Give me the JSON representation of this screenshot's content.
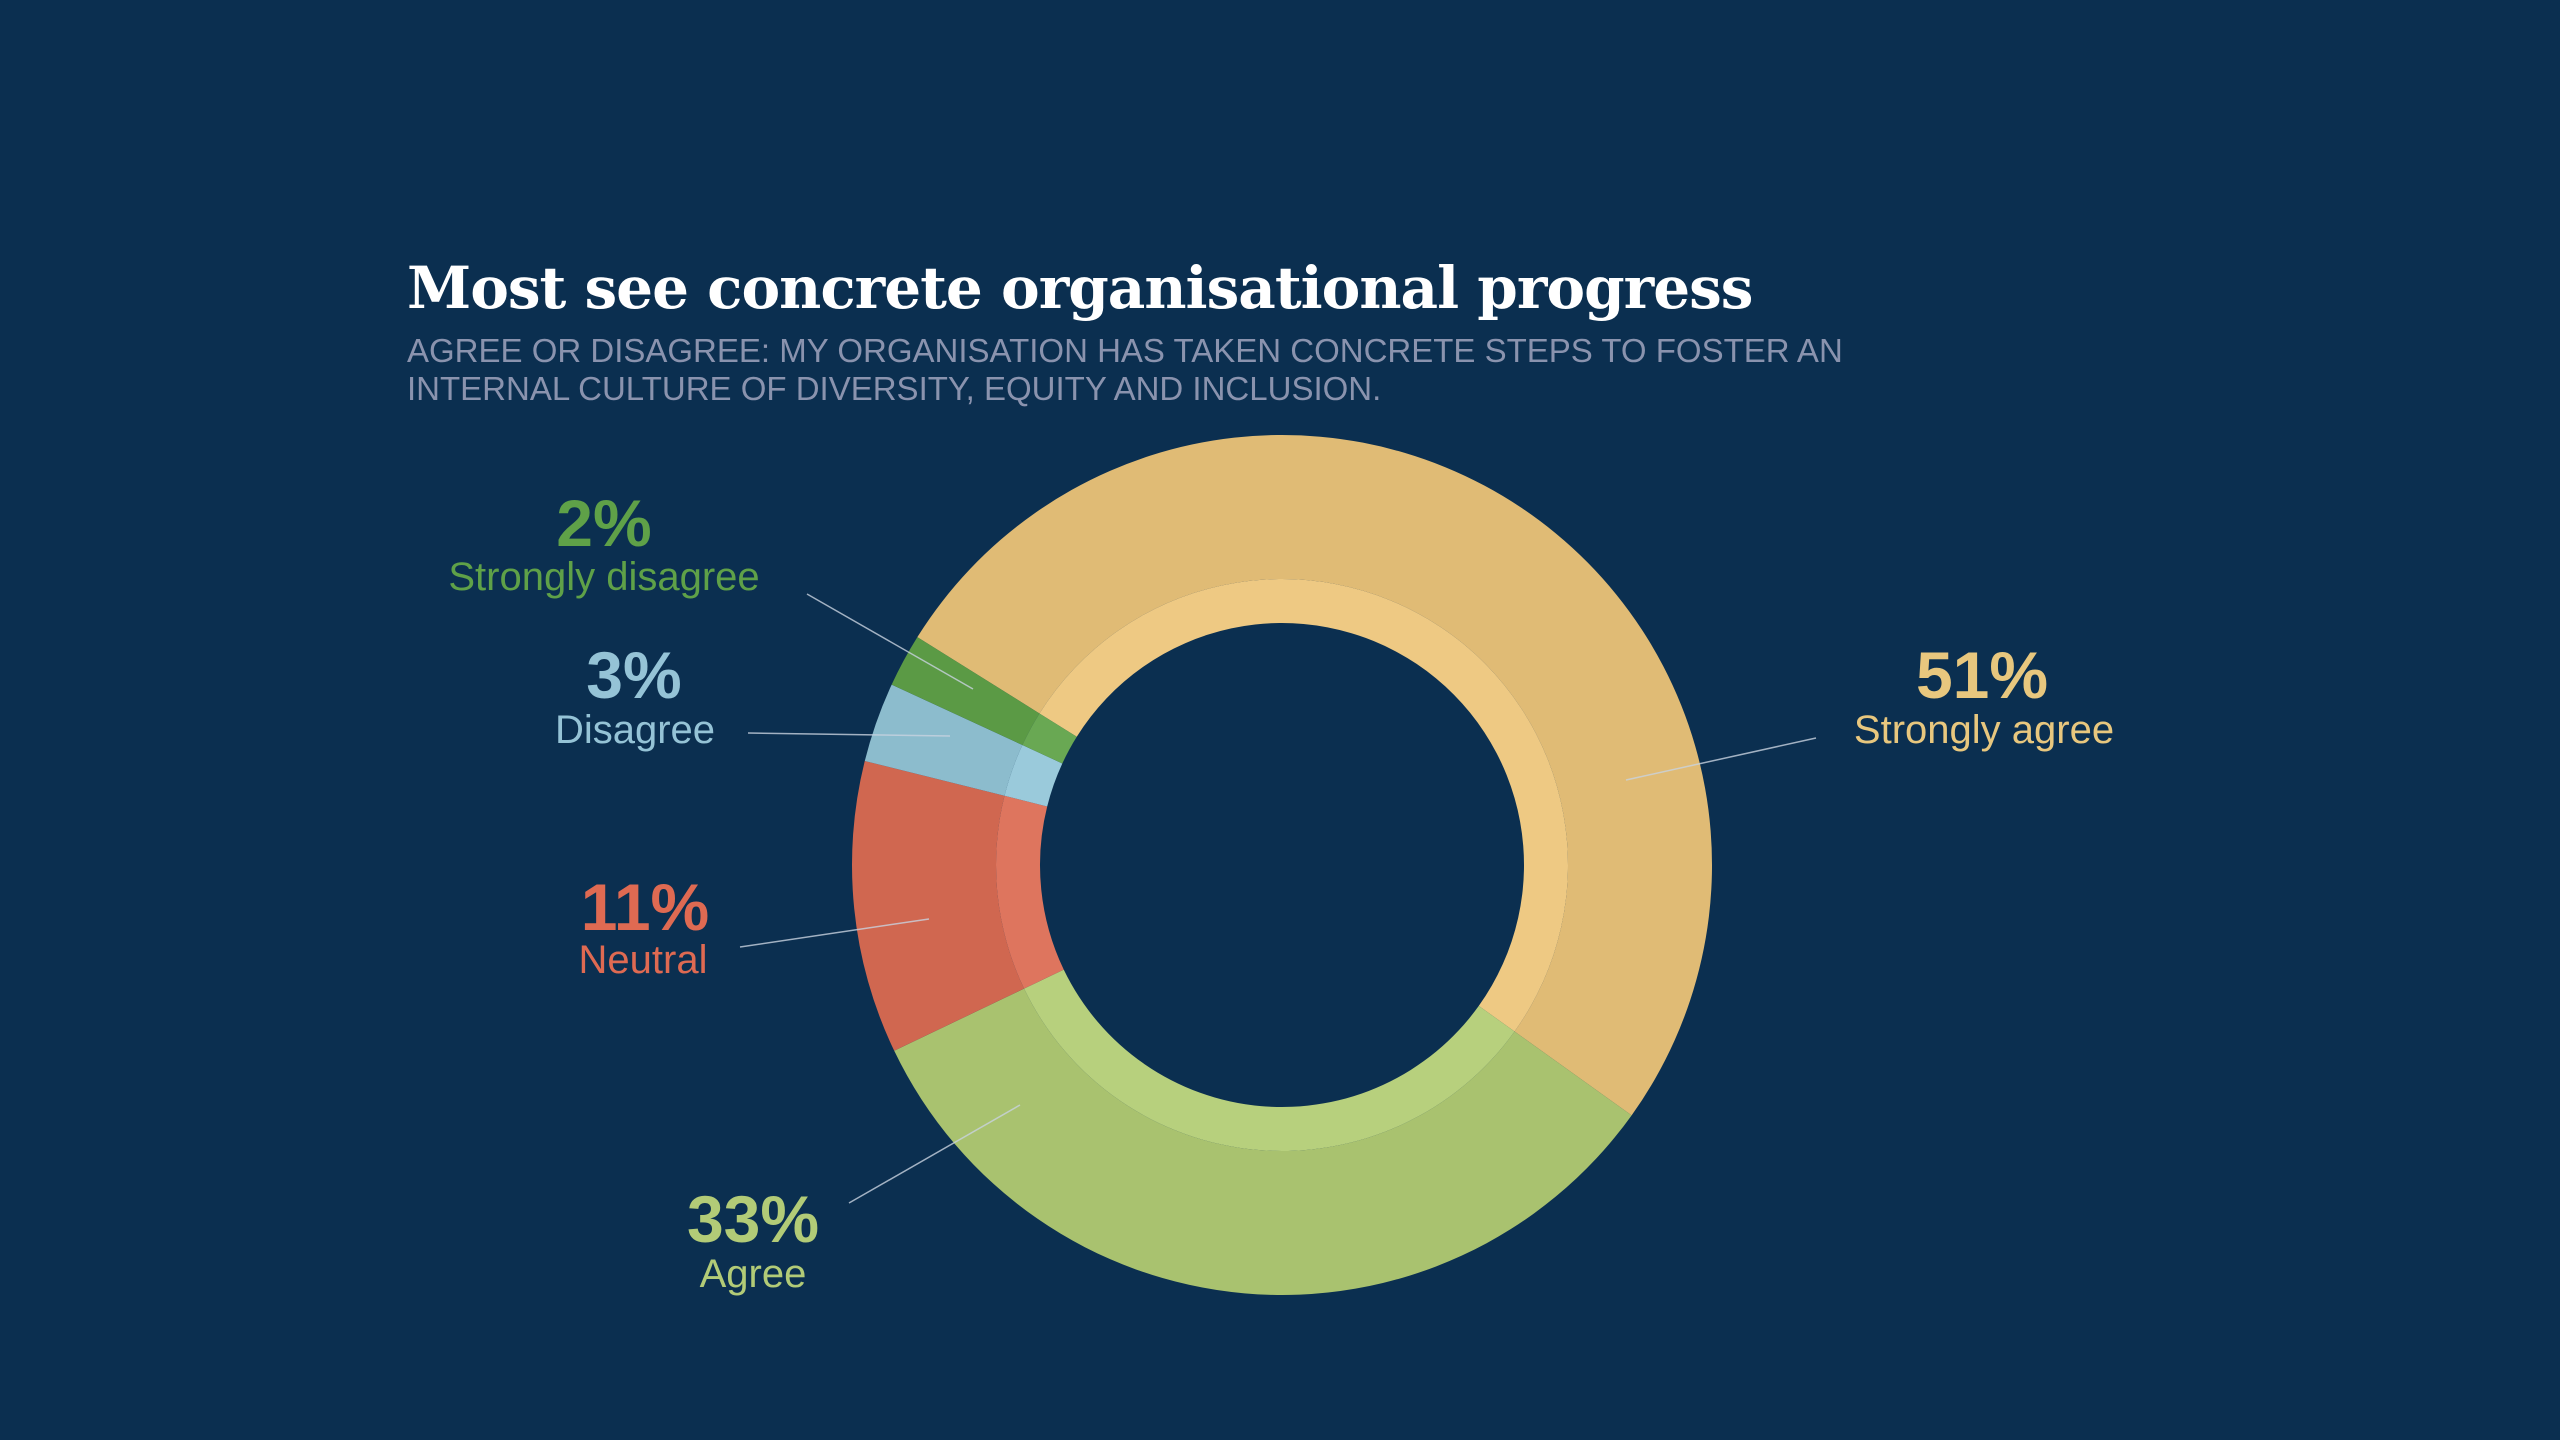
{
  "chart_data": {
    "type": "pie",
    "variant": "donut",
    "title": "Most see concrete organisational progress",
    "subtitle_lines": [
      "AGREE OR DISAGREE: MY ORGANISATION HAS TAKEN CONCRETE STEPS TO FOSTER AN",
      "INTERNAL CULTURE OF DIVERSITY, EQUITY AND INCLUSION."
    ],
    "slices": [
      {
        "label": "Strongly agree",
        "value": 51,
        "value_label": "51%",
        "color": "#e0bb75"
      },
      {
        "label": "Agree",
        "value": 33,
        "value_label": "33%",
        "color": "#a9c26f"
      },
      {
        "label": "Neutral",
        "value": 11,
        "value_label": "11%",
        "color": "#d06750"
      },
      {
        "label": "Disagree",
        "value": 3,
        "value_label": "3%",
        "color": "#8cbccd"
      },
      {
        "label": "Strongly disagree",
        "value": 2,
        "value_label": "2%",
        "color": "#5b9a45"
      }
    ]
  },
  "colors": {
    "background": "#0b2f50",
    "subtitle": "#8a93ae"
  }
}
